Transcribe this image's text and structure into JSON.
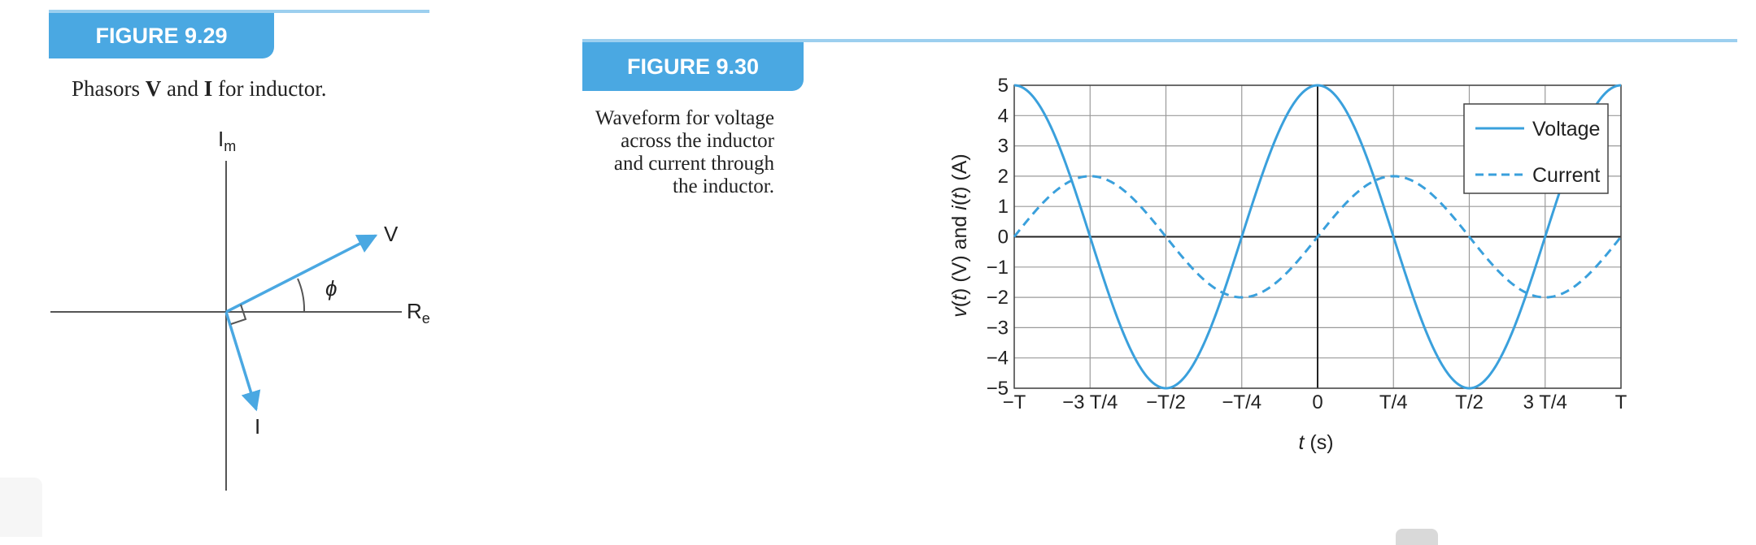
{
  "figure_929": {
    "label": "FIGURE 9.29",
    "caption": "Phasors V and I for inductor.",
    "caption_parts": {
      "pre": "Phasors ",
      "v": "V",
      "mid": " and ",
      "i": "I",
      "post": " for inductor."
    },
    "axis_im": "I",
    "axis_im_sub": "m",
    "axis_re": "R",
    "axis_re_sub": "e",
    "v_label": "V",
    "i_label": "I",
    "phi_label": "ϕ",
    "accent": "#4aa8e2"
  },
  "figure_930": {
    "label": "FIGURE 9.30",
    "caption_lines": [
      "Waveform for voltage",
      "across the inductor",
      "and current through",
      "the inductor."
    ]
  },
  "chart_data": {
    "type": "line",
    "x_ticks": [
      "−T",
      "−3 T/4",
      "−T/2",
      "−T/4",
      "0",
      "T/4",
      "T/2",
      "3 T/4",
      "T"
    ],
    "x": [
      -1,
      -0.75,
      -0.5,
      -0.25,
      0,
      0.25,
      0.5,
      0.75,
      1
    ],
    "y_ticks": [
      "5",
      "4",
      "3",
      "2",
      "1",
      "0",
      "−1",
      "−2",
      "−3",
      "−4",
      "−5"
    ],
    "ylim": [
      -5,
      5
    ],
    "xlabel_italic": "t",
    "xlabel_rest": " (s)",
    "ylabel_parts": [
      "v",
      "(",
      "t",
      ") (V) and ",
      "i",
      "(",
      "t",
      ") (A)"
    ],
    "series": [
      {
        "name": "Voltage",
        "style": "solid",
        "values": [
          5,
          0,
          -5,
          0,
          5,
          0,
          -5,
          0,
          5
        ]
      },
      {
        "name": "Current",
        "style": "dashed",
        "values": [
          0,
          2,
          0,
          -2,
          0,
          2,
          0,
          -2,
          0
        ]
      }
    ],
    "legend_position": "top-right",
    "grid": true,
    "line_color": "#3aa0dc"
  }
}
